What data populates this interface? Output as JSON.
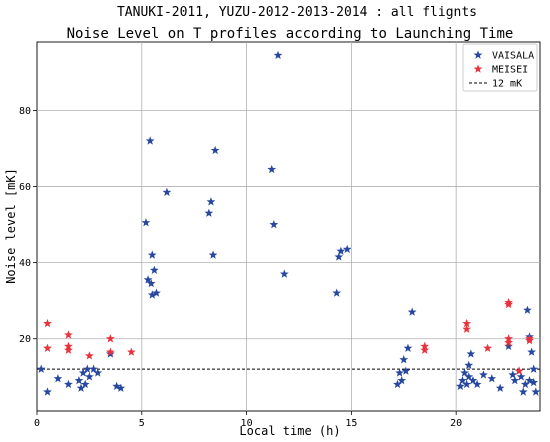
{
  "chart_data": {
    "type": "scatter",
    "suptitle": "TANUKI-2011, YUZU-2012-2013-2014 : all flignts",
    "title": "Noise Level on T profiles according to Launching Time",
    "xlabel": "Local time (h)",
    "ylabel": "Noise level  [mK]",
    "xlim": [
      0,
      24
    ],
    "ylim": [
      1,
      98
    ],
    "xticks": [
      0,
      5,
      10,
      15,
      20
    ],
    "yticks": [
      20,
      40,
      60,
      80
    ],
    "grid": true,
    "legend_position": "top-right",
    "reference_line": {
      "label": "12 mK",
      "y": 12,
      "style": "dashed",
      "color": "#000000"
    },
    "series": [
      {
        "name": "VAISALA",
        "color": "#2848a0",
        "marker": "star",
        "points": [
          [
            0.2,
            12
          ],
          [
            0.5,
            6
          ],
          [
            1.0,
            9.5
          ],
          [
            1.5,
            8
          ],
          [
            2.0,
            9
          ],
          [
            2.1,
            7
          ],
          [
            2.2,
            11
          ],
          [
            2.3,
            8
          ],
          [
            2.4,
            12
          ],
          [
            2.5,
            10
          ],
          [
            2.7,
            12
          ],
          [
            2.9,
            11
          ],
          [
            3.5,
            16
          ],
          [
            3.8,
            7.5
          ],
          [
            4.0,
            7
          ],
          [
            5.2,
            50.5
          ],
          [
            5.3,
            35.5
          ],
          [
            5.4,
            72
          ],
          [
            5.45,
            34.5
          ],
          [
            5.5,
            31.5
          ],
          [
            5.5,
            42
          ],
          [
            5.6,
            38
          ],
          [
            5.7,
            32
          ],
          [
            6.2,
            58.5
          ],
          [
            8.2,
            53
          ],
          [
            8.3,
            56
          ],
          [
            8.4,
            42
          ],
          [
            8.5,
            69.5
          ],
          [
            11.2,
            64.5
          ],
          [
            11.3,
            50
          ],
          [
            11.5,
            94.5
          ],
          [
            11.8,
            37
          ],
          [
            14.3,
            32
          ],
          [
            14.4,
            41.5
          ],
          [
            14.5,
            43
          ],
          [
            14.8,
            43.5
          ],
          [
            17.2,
            8
          ],
          [
            17.3,
            11
          ],
          [
            17.4,
            9
          ],
          [
            17.5,
            14.5
          ],
          [
            17.6,
            11.5
          ],
          [
            17.7,
            17.5
          ],
          [
            17.9,
            27
          ],
          [
            20.2,
            7.5
          ],
          [
            20.3,
            9
          ],
          [
            20.4,
            11
          ],
          [
            20.5,
            8
          ],
          [
            20.6,
            13
          ],
          [
            20.6,
            10
          ],
          [
            20.7,
            16
          ],
          [
            20.8,
            9
          ],
          [
            21.0,
            8
          ],
          [
            21.3,
            10.5
          ],
          [
            21.7,
            9.5
          ],
          [
            22.1,
            7
          ],
          [
            22.5,
            18
          ],
          [
            22.7,
            10.5
          ],
          [
            22.8,
            9
          ],
          [
            23.0,
            11.5
          ],
          [
            23.1,
            10
          ],
          [
            23.2,
            6
          ],
          [
            23.3,
            8
          ],
          [
            23.4,
            27.5
          ],
          [
            23.5,
            20.5
          ],
          [
            23.5,
            9
          ],
          [
            23.6,
            16.5
          ],
          [
            23.7,
            12
          ],
          [
            23.7,
            8.5
          ],
          [
            23.8,
            6
          ]
        ]
      },
      {
        "name": "MEISEI",
        "color": "#e8323c",
        "marker": "star",
        "points": [
          [
            0.5,
            24
          ],
          [
            0.5,
            17.5
          ],
          [
            1.5,
            21
          ],
          [
            1.5,
            18
          ],
          [
            1.5,
            17
          ],
          [
            2.5,
            15.5
          ],
          [
            3.5,
            20
          ],
          [
            3.5,
            16.5
          ],
          [
            4.5,
            16.5
          ],
          [
            18.5,
            18
          ],
          [
            18.5,
            17
          ],
          [
            20.5,
            24
          ],
          [
            20.5,
            22.5
          ],
          [
            21.5,
            17.5
          ],
          [
            22.5,
            29.5
          ],
          [
            22.5,
            29
          ],
          [
            22.5,
            20
          ],
          [
            22.5,
            19
          ],
          [
            23.0,
            11.5
          ],
          [
            23.5,
            19.5
          ],
          [
            23.5,
            20
          ]
        ]
      }
    ]
  }
}
